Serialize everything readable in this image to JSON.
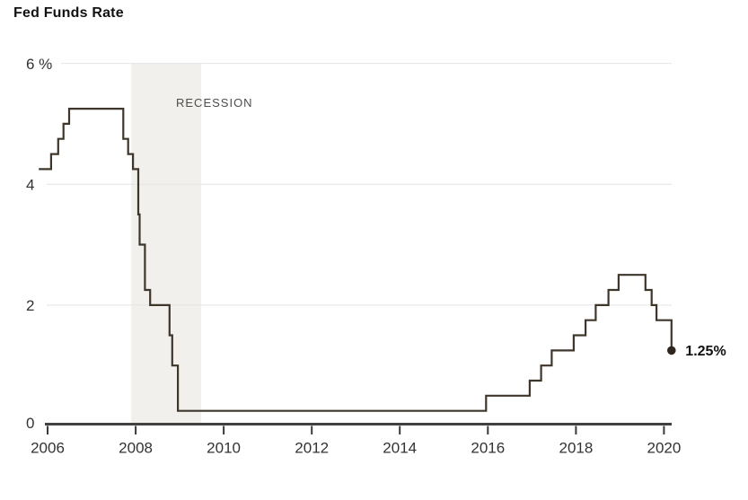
{
  "chart": {
    "title": "Fed Funds Rate"
  },
  "chart_data": {
    "type": "line",
    "subtype": "step-after",
    "title": "Fed Funds Rate",
    "unit": "%",
    "xlim": [
      2005.8,
      2020.35
    ],
    "ylim": [
      0,
      6
    ],
    "grid": "horizontal",
    "x_ticks": [
      {
        "year": 2006,
        "label": "2006"
      },
      {
        "year": 2008,
        "label": "2008"
      },
      {
        "year": 2010,
        "label": "2010"
      },
      {
        "year": 2012,
        "label": "2012"
      },
      {
        "year": 2014,
        "label": "2014"
      },
      {
        "year": 2016,
        "label": "2016"
      },
      {
        "year": 2018,
        "label": "2018"
      },
      {
        "year": 2020,
        "label": "2020"
      }
    ],
    "y_ticks": [
      {
        "value": 0,
        "label": "0"
      },
      {
        "value": 2,
        "label": "2"
      },
      {
        "value": 4,
        "label": "4"
      },
      {
        "value": 6,
        "label": "6 %"
      }
    ],
    "recession": {
      "label": "RECESSION",
      "start_year": 2007.9,
      "end_year": 2009.49
    },
    "series": [
      {
        "name": "Fed Funds Rate",
        "points": [
          [
            2005.8,
            4.25
          ],
          [
            2006.08,
            4.5
          ],
          [
            2006.24,
            4.75
          ],
          [
            2006.36,
            5.0
          ],
          [
            2006.49,
            5.25
          ],
          [
            2007.72,
            4.75
          ],
          [
            2007.83,
            4.5
          ],
          [
            2007.94,
            4.25
          ],
          [
            2008.06,
            3.5
          ],
          [
            2008.09,
            3.0
          ],
          [
            2008.21,
            2.25
          ],
          [
            2008.33,
            2.0
          ],
          [
            2008.77,
            1.5
          ],
          [
            2008.83,
            1.0
          ],
          [
            2008.96,
            0.25
          ],
          [
            2015.96,
            0.5
          ],
          [
            2016.95,
            0.75
          ],
          [
            2017.21,
            1.0
          ],
          [
            2017.45,
            1.25
          ],
          [
            2017.95,
            1.5
          ],
          [
            2018.22,
            1.75
          ],
          [
            2018.45,
            2.0
          ],
          [
            2018.74,
            2.25
          ],
          [
            2018.97,
            2.5
          ],
          [
            2019.58,
            2.25
          ],
          [
            2019.72,
            2.0
          ],
          [
            2019.83,
            1.75
          ],
          [
            2020.17,
            1.25
          ]
        ]
      }
    ],
    "end_point": {
      "year": 2020.17,
      "value": 1.25,
      "label": "1.25%"
    },
    "colors": {
      "line": "#3e362b",
      "dot": "#2f271e",
      "band": "#f1f0ed",
      "grid": "#e4e4e4",
      "axis": "#414141",
      "tick": "#3a3a3a",
      "tick_text": "#333333",
      "recession_text": "#4d4d4d",
      "title_text": "#121212",
      "end_label_text": "#121212",
      "background": "#ffffff"
    }
  }
}
